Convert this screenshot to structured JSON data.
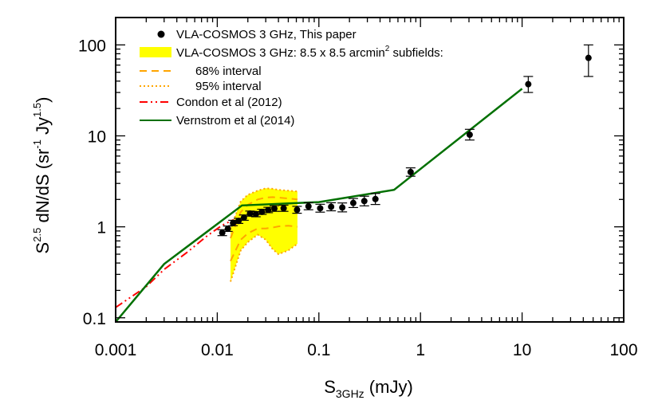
{
  "chart_data": {
    "type": "scatter",
    "x_scale": "log",
    "y_scale": "log",
    "xlim": [
      0.001,
      100
    ],
    "ylim": [
      0.09,
      200
    ],
    "grid": false,
    "legend_position": "top-left",
    "xlabel": {
      "base": "S",
      "sub": "3GHz",
      "unit": " (mJy)"
    },
    "ylabel": {
      "p1": "S",
      "sup1": "2.5",
      "p2": " dN/dS  (sr",
      "sup2": "-1",
      "p3": " Jy",
      "sup3": "1.5",
      "p4": ")"
    },
    "x_ticks": [
      {
        "value": 0.001,
        "label": "0.001"
      },
      {
        "value": 0.01,
        "label": "0.01"
      },
      {
        "value": 0.1,
        "label": "0.1"
      },
      {
        "value": 1,
        "label": "1"
      },
      {
        "value": 10,
        "label": "10"
      },
      {
        "value": 100,
        "label": "100"
      }
    ],
    "y_ticks": [
      {
        "value": 0.1,
        "label": "0.1"
      },
      {
        "value": 1,
        "label": "1"
      },
      {
        "value": 10,
        "label": "10"
      },
      {
        "value": 100,
        "label": "100"
      }
    ],
    "series": [
      {
        "name": "VLA-COSMOS 3 GHz, This paper",
        "kind": "points",
        "color": "#000000",
        "points": [
          {
            "x": 0.0112,
            "y": 0.86,
            "lo": 0.8,
            "hi": 0.93
          },
          {
            "x": 0.0127,
            "y": 0.95,
            "lo": 0.89,
            "hi": 1.02
          },
          {
            "x": 0.0143,
            "y": 1.1,
            "lo": 1.03,
            "hi": 1.18
          },
          {
            "x": 0.0162,
            "y": 1.16,
            "lo": 1.09,
            "hi": 1.24
          },
          {
            "x": 0.0183,
            "y": 1.26,
            "lo": 1.18,
            "hi": 1.35
          },
          {
            "x": 0.021,
            "y": 1.4,
            "lo": 1.31,
            "hi": 1.49
          },
          {
            "x": 0.024,
            "y": 1.38,
            "lo": 1.29,
            "hi": 1.47
          },
          {
            "x": 0.0275,
            "y": 1.46,
            "lo": 1.37,
            "hi": 1.56
          },
          {
            "x": 0.0317,
            "y": 1.53,
            "lo": 1.43,
            "hi": 1.64
          },
          {
            "x": 0.0365,
            "y": 1.59,
            "lo": 1.48,
            "hi": 1.71
          },
          {
            "x": 0.045,
            "y": 1.6,
            "lo": 1.48,
            "hi": 1.73
          },
          {
            "x": 0.061,
            "y": 1.54,
            "lo": 1.41,
            "hi": 1.68
          },
          {
            "x": 0.079,
            "y": 1.68,
            "lo": 1.54,
            "hi": 1.84
          },
          {
            "x": 0.103,
            "y": 1.6,
            "lo": 1.45,
            "hi": 1.77
          },
          {
            "x": 0.132,
            "y": 1.66,
            "lo": 1.5,
            "hi": 1.84
          },
          {
            "x": 0.17,
            "y": 1.63,
            "lo": 1.46,
            "hi": 1.83
          },
          {
            "x": 0.218,
            "y": 1.83,
            "lo": 1.63,
            "hi": 2.05
          },
          {
            "x": 0.28,
            "y": 1.92,
            "lo": 1.7,
            "hi": 2.17
          },
          {
            "x": 0.36,
            "y": 2.02,
            "lo": 1.76,
            "hi": 2.33
          },
          {
            "x": 0.8,
            "y": 4.0,
            "lo": 3.6,
            "hi": 4.45
          },
          {
            "x": 3.05,
            "y": 10.3,
            "lo": 9.0,
            "hi": 11.8
          },
          {
            "x": 11.5,
            "y": 37.0,
            "lo": 30.0,
            "hi": 45.0
          },
          {
            "x": 45.0,
            "y": 72.0,
            "lo": 45.0,
            "hi": 100.0
          }
        ]
      },
      {
        "name": "VLA-COSMOS 3 GHz: 8.5 x 8.5 arcmin",
        "name_sup": "2",
        "name_suffix": " subfields:",
        "kind": "band",
        "color": "#ffff00",
        "x": [
          0.0135,
          0.017,
          0.02,
          0.025,
          0.03,
          0.035,
          0.04,
          0.05,
          0.0615
        ],
        "upper": [
          0.95,
          1.9,
          2.25,
          2.5,
          2.65,
          2.62,
          2.55,
          2.5,
          2.45
        ],
        "lower": [
          0.25,
          0.55,
          0.68,
          0.82,
          0.72,
          0.57,
          0.5,
          0.55,
          0.65
        ]
      },
      {
        "name": "68% interval",
        "kind": "line",
        "style": "dashed",
        "color": "#ffa500",
        "x": [
          0.0135,
          0.017,
          0.02,
          0.025,
          0.03,
          0.035,
          0.04,
          0.05,
          0.0615
        ],
        "upper": [
          0.75,
          1.45,
          1.75,
          2.0,
          2.1,
          2.12,
          2.1,
          2.05,
          2.0
        ],
        "lower": [
          0.42,
          0.72,
          0.85,
          0.96,
          0.96,
          0.98,
          1.01,
          1.03,
          1.0
        ]
      },
      {
        "name": "95% interval",
        "kind": "line",
        "style": "dotted",
        "color": "#ffa500",
        "x": [
          0.0135,
          0.017,
          0.02,
          0.025,
          0.03,
          0.035,
          0.04,
          0.05,
          0.0615
        ],
        "upper": [
          0.95,
          1.9,
          2.25,
          2.5,
          2.65,
          2.62,
          2.55,
          2.5,
          2.45
        ],
        "lower": [
          0.25,
          0.55,
          0.68,
          0.82,
          0.72,
          0.57,
          0.5,
          0.55,
          0.65
        ]
      },
      {
        "name": "Condon et al (2012)",
        "kind": "line",
        "style": "dashdotdot",
        "color": "#ff0000",
        "x": [
          0.001,
          0.002,
          0.003,
          0.005,
          0.008,
          0.011,
          0.0145
        ],
        "y": [
          0.13,
          0.22,
          0.34,
          0.52,
          0.8,
          1.03,
          1.2
        ]
      },
      {
        "name": "Vernstrom et al (2014)",
        "kind": "line",
        "style": "solid",
        "color": "#007000",
        "x": [
          0.001,
          0.003,
          0.0175,
          0.1,
          0.55,
          10.0
        ],
        "y": [
          0.09,
          0.39,
          1.72,
          1.87,
          2.55,
          33.0
        ]
      }
    ]
  }
}
